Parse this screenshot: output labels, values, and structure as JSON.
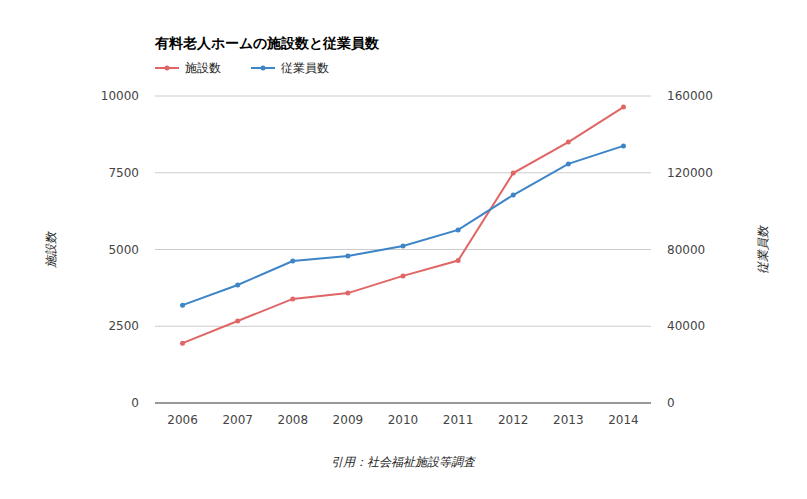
{
  "chart_data": {
    "type": "line",
    "title": "有料老人ホームの施設数と従業員数",
    "y_label": "施設数",
    "y2_label": "従業員数",
    "source": "引用：社会福祉施設等調査",
    "categories": [
      "2006",
      "2007",
      "2008",
      "2009",
      "2010",
      "2011",
      "2012",
      "2013",
      "2014"
    ],
    "series": [
      {
        "name": "施設数",
        "color": "#e06666",
        "marker": "circle",
        "line_style": "solid",
        "values": [
          1950,
          2670,
          3390,
          3580,
          4140,
          4640,
          7490,
          8500,
          9640
        ]
      },
      {
        "name": "従業員数",
        "color": "#3d85c6",
        "marker": "circle",
        "line_style": "solid",
        "axis": "y2",
        "values": [
          51000,
          61500,
          74000,
          76600,
          81800,
          90200,
          108400,
          124600,
          134000
        ]
      }
    ],
    "ylim": [
      0,
      10000
    ],
    "yticks": [
      0,
      2500,
      5000,
      7500,
      10000
    ],
    "y2lim": [
      0,
      160000
    ],
    "y2ticks": [
      0,
      40000,
      80000,
      120000,
      160000
    ],
    "grid": true,
    "legend": "top-left"
  }
}
